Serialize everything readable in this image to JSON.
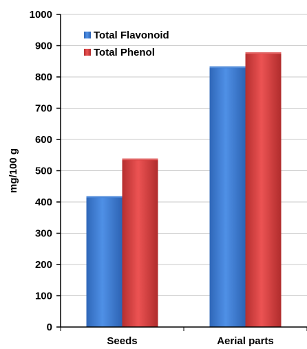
{
  "chart_data": {
    "type": "bar",
    "title": "",
    "xlabel": "",
    "ylabel": "mg/100 g",
    "ylim": [
      0,
      1000
    ],
    "yticks": [
      0,
      100,
      200,
      300,
      400,
      500,
      600,
      700,
      800,
      900,
      1000
    ],
    "categories": [
      "Seeds",
      "Aerial parts"
    ],
    "series": [
      {
        "name": "Total Flavonoid",
        "values": [
          415,
          830
        ],
        "color": "#3f7fd6"
      },
      {
        "name": "Total Phenol",
        "values": [
          535,
          875
        ],
        "color": "#d94343"
      }
    ],
    "grid": true,
    "legend_position": "top-left"
  }
}
